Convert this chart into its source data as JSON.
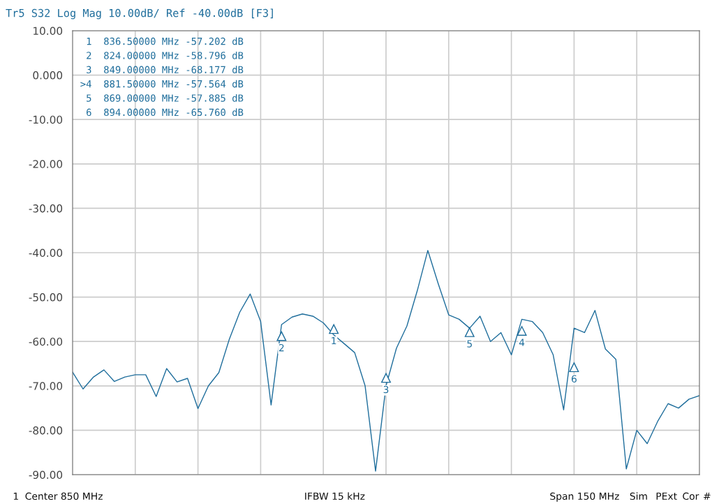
{
  "chart_data": {
    "type": "line",
    "title": "Tr5 S32 Log Mag 10.00dB/ Ref -40.00dB [F3]",
    "categories": [
      null,
      null,
      null,
      null,
      null,
      null,
      null,
      null,
      null,
      null,
      null,
      null,
      null,
      null,
      null,
      null,
      null,
      null,
      null,
      null,
      null,
      null,
      null,
      null,
      null,
      null,
      null,
      null,
      null,
      null,
      null,
      null,
      null,
      null,
      null,
      null,
      null,
      null,
      null,
      null,
      null,
      null,
      null,
      null,
      null,
      null,
      null,
      null,
      null,
      null,
      null,
      null,
      null,
      null,
      null,
      null,
      null,
      null,
      null,
      null,
      null
    ],
    "series": [
      {
        "color": "#1f6e9c",
        "values": [
          -66.9,
          -70.7,
          -68.0,
          -66.4,
          -69.0,
          -68.0,
          -67.5,
          -67.5,
          -72.4,
          -66.1,
          -69.1,
          -68.3,
          -75.1,
          -70.0,
          -67.0,
          -59.5,
          -53.4,
          -49.3,
          -55.5,
          -74.3,
          -56.2,
          -54.5,
          -53.8,
          -54.3,
          -55.8,
          -58.5,
          -60.5,
          -62.5,
          -70.0,
          -89.2,
          -70.0,
          -61.5,
          -56.5,
          -48.5,
          -39.5,
          -47.0,
          -54.0,
          -55.0,
          -57.0,
          -54.3,
          -60.0,
          -58.0,
          -63.0,
          -55.0,
          -55.5,
          -58.0,
          -63.0,
          -75.4,
          -57.0,
          -58.0,
          -53.0,
          -61.7,
          -64.0,
          -88.7,
          -80.0,
          -83.0,
          -78.0,
          -74.0,
          -75.0,
          -73.0,
          -72.2
        ]
      },
      {
        "type": "scatter",
        "marker": "triangle",
        "color": "#1f6e9c",
        "values": [
          null,
          null,
          null,
          null,
          null,
          null,
          null,
          null,
          null,
          null,
          null,
          null,
          null,
          null,
          null,
          null,
          null,
          null,
          null,
          null,
          -58.8,
          null,
          null,
          null,
          null,
          -57.2,
          null,
          null,
          null,
          null,
          -68.2,
          null,
          null,
          null,
          null,
          null,
          null,
          null,
          -57.9,
          null,
          null,
          null,
          null,
          -57.6,
          null,
          null,
          null,
          null,
          -65.8,
          null,
          null,
          null,
          null,
          null,
          null,
          null,
          null,
          null,
          null,
          null,
          null
        ]
      }
    ],
    "ylim": [
      -90,
      10
    ],
    "yticks": [
      {
        "value": 10,
        "label": "10.00"
      },
      {
        "value": 0,
        "label": "0.000"
      },
      {
        "value": -10,
        "label": "-10.00"
      },
      {
        "value": -20,
        "label": "-20.00"
      },
      {
        "value": -30,
        "label": "-30.00"
      },
      {
        "value": -40,
        "label": "-40.00"
      },
      {
        "value": -50,
        "label": "-50.00"
      },
      {
        "value": -60,
        "label": "-60.00"
      },
      {
        "value": -70,
        "label": "-70.00"
      },
      {
        "value": -80,
        "label": "-80.00"
      },
      {
        "value": -90,
        "label": "-90.00"
      }
    ],
    "tick_labels": "y",
    "grid": true,
    "annotations": [
      " 1  836.50000 MHz -57.202 dB",
      " 2  824.00000 MHz -58.796 dB",
      " 3  849.00000 MHz -68.177 dB",
      ">4  881.50000 MHz -57.564 dB",
      " 5  869.00000 MHz -57.885 dB",
      " 6  894.00000 MHz -65.760 dB",
      {
        "text": "2",
        "y": -58.8
      },
      {
        "text": "1",
        "y": -57.2
      },
      {
        "text": "3",
        "y": -68.2
      },
      {
        "text": "5",
        "y": -57.9
      },
      {
        "text": "4",
        "y": -57.6
      },
      {
        "text": "6",
        "y": -65.8
      },
      "1",
      "Center 850 MHz",
      "IFBW 15 kHz",
      "Span 150 MHz",
      "Sim",
      "PExt",
      "Cor",
      "#"
    ]
  }
}
